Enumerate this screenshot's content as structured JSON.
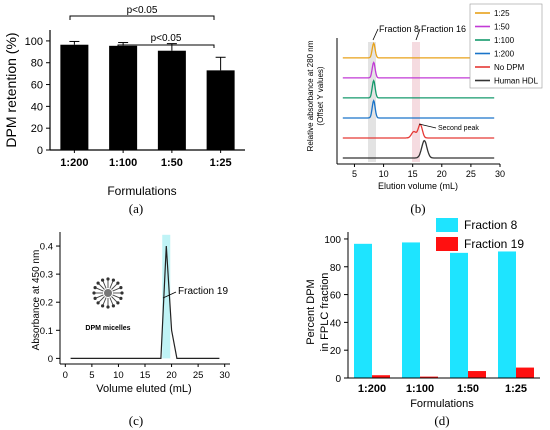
{
  "chart_data": [
    {
      "type": "bar",
      "panel_label": "(a)",
      "categories": [
        "1:200",
        "1:100",
        "1:50",
        "1:25"
      ],
      "values": [
        96.5,
        95.5,
        91,
        73
      ],
      "errors": [
        3,
        3,
        6.5,
        12
      ],
      "xlabel": "Formulations",
      "ylabel": "DPM retention (%)",
      "ylim": [
        0,
        110
      ],
      "yticks": [
        "0",
        "20",
        "40",
        "60",
        "80",
        "100"
      ],
      "grid": false,
      "bar_color": "#000000",
      "annotations": [
        {
          "text": "p<0.05",
          "from": "1:200",
          "to": "1:25"
        },
        {
          "text": "p<0.05",
          "from": "1:100",
          "to": "1:25"
        }
      ]
    },
    {
      "type": "line",
      "panel_label": "(b)",
      "xlabel": "Elution volume (mL)",
      "ylabel": "Relative absorbance at 280 nm",
      "ylabel2": "(Offset Y values)",
      "xlim": [
        2,
        30
      ],
      "xticks": [
        "5",
        "10",
        "15",
        "20",
        "25",
        "30"
      ],
      "legend_position": "top-right",
      "annotations": [
        "Fraction 8",
        "Fraction 16",
        "Second peak"
      ],
      "highlight_fractions": [
        8.3,
        16.3
      ],
      "series": [
        {
          "name": "1:25",
          "color": "#e8a21a",
          "baseline": 5.5,
          "peaks": [
            [
              8.3,
              0.8,
              0.25
            ]
          ]
        },
        {
          "name": "1:50",
          "color": "#c23ad6",
          "baseline": 4.4,
          "peaks": [
            [
              8.3,
              0.85,
              0.25
            ]
          ]
        },
        {
          "name": "1:100",
          "color": "#159a6c",
          "baseline": 3.3,
          "peaks": [
            [
              8.3,
              0.95,
              0.25
            ]
          ]
        },
        {
          "name": "1:200",
          "color": "#1a74c9",
          "baseline": 2.2,
          "peaks": [
            [
              8.3,
              0.95,
              0.25
            ]
          ]
        },
        {
          "name": "No DPM",
          "color": "#e53935",
          "baseline": 1.1,
          "peaks": [
            [
              15.2,
              0.35,
              0.4
            ],
            [
              16.3,
              0.75,
              0.35
            ]
          ]
        },
        {
          "name": "Human HDL",
          "color": "#333333",
          "baseline": 0.0,
          "peaks": [
            [
              17.0,
              0.95,
              0.45
            ]
          ]
        }
      ]
    },
    {
      "type": "line",
      "panel_label": "(c)",
      "xlabel": "Volume eluted (mL)",
      "ylabel": "Absorbance at 450 nm",
      "xlim": [
        -1,
        31
      ],
      "ylim": [
        -0.02,
        0.45
      ],
      "xticks": [
        "0",
        "5",
        "10",
        "15",
        "20",
        "25",
        "30"
      ],
      "yticks": [
        "0",
        "0.1",
        "0.2",
        "0.3",
        "0.4"
      ],
      "annotation": "Fraction 19",
      "inset_label": "DPM micelles",
      "highlight_x": 19,
      "highlight_color": "#bff3f6",
      "series": [
        {
          "x": [
            1,
            18,
            19,
            20,
            21,
            29
          ],
          "y": [
            0,
            0,
            0.4,
            0.1,
            0,
            0
          ],
          "color": "#222222"
        }
      ]
    },
    {
      "type": "bar",
      "panel_label": "(d)",
      "categories": [
        "1:200",
        "1:100",
        "1:50",
        "1:25"
      ],
      "xlabel": "Formulations",
      "ylabel": "Percent DPM",
      "ylabel2": "in FPLC fraction",
      "ylim": [
        0,
        105
      ],
      "yticks": [
        "0",
        "20",
        "40",
        "60",
        "80",
        "100"
      ],
      "legend_position": "top-right",
      "series": [
        {
          "name": "Fraction 8",
          "color": "#1ee4ff",
          "values": [
            96.5,
            97.5,
            90,
            91
          ]
        },
        {
          "name": "Fraction 19",
          "color": "#ff1010",
          "values": [
            2,
            1,
            5,
            7.5
          ]
        }
      ]
    }
  ]
}
